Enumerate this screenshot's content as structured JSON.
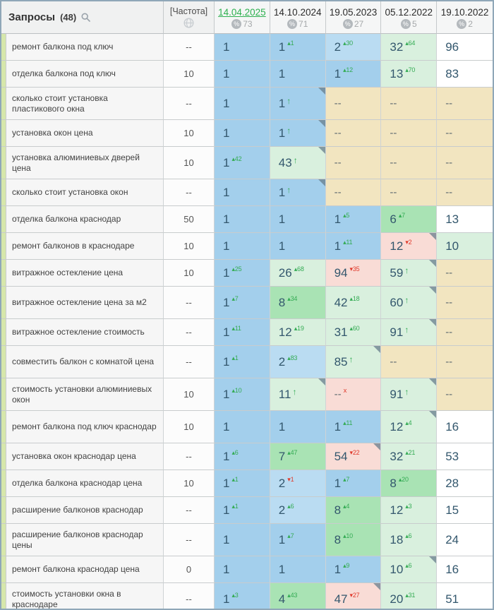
{
  "header": {
    "title": "Запросы",
    "count": "(48)",
    "frequency_label": "[Частота]",
    "percent_symbol": "%",
    "dates": [
      {
        "label": "14.04.2025",
        "metric": "73",
        "active": true
      },
      {
        "label": "14.10.2024",
        "metric": "71",
        "active": false
      },
      {
        "label": "19.05.2023",
        "metric": "27",
        "active": false
      },
      {
        "label": "05.12.2022",
        "metric": "5",
        "active": false
      },
      {
        "label": "19.10.2022",
        "metric": "2",
        "active": false
      }
    ]
  },
  "colors": {
    "active_date": "#2db04f",
    "up": "#33ab53",
    "down": "#e03a2c",
    "cell_blue": "#a3cfec",
    "cell_blue_light": "#badcf2",
    "cell_green": "#a9e3b4",
    "cell_green_light": "#d9f0de",
    "cell_pink": "#f9dcd6",
    "cell_tan": "#f2e5c0"
  },
  "rows": [
    {
      "query": "ремонт балкона под ключ",
      "frequency": "--",
      "tall": false,
      "cells": [
        {
          "value": "1",
          "bg": "blue"
        },
        {
          "value": "1",
          "bg": "blue",
          "delta": "1",
          "dir": "up"
        },
        {
          "value": "2",
          "bg": "blue_light",
          "delta": "30",
          "dir": "up"
        },
        {
          "value": "32",
          "bg": "green_light",
          "delta": "64",
          "dir": "up"
        },
        {
          "value": "96",
          "bg": "white"
        }
      ]
    },
    {
      "query": "отделка балкона под ключ",
      "frequency": "10",
      "tall": false,
      "cells": [
        {
          "value": "1",
          "bg": "blue"
        },
        {
          "value": "1",
          "bg": "blue"
        },
        {
          "value": "1",
          "bg": "blue",
          "delta": "12",
          "dir": "up"
        },
        {
          "value": "13",
          "bg": "green_light",
          "delta": "70",
          "dir": "up"
        },
        {
          "value": "83",
          "bg": "white"
        }
      ]
    },
    {
      "query": "сколько стоит установка пластикового окна",
      "frequency": "--",
      "tall": true,
      "cells": [
        {
          "value": "1",
          "bg": "blue"
        },
        {
          "value": "1",
          "bg": "blue",
          "arrow": true,
          "corner": true
        },
        {
          "value": "--",
          "bg": "tan"
        },
        {
          "value": "--",
          "bg": "tan"
        },
        {
          "value": "--",
          "bg": "tan"
        }
      ]
    },
    {
      "query": "установка окон цена",
      "frequency": "10",
      "tall": false,
      "cells": [
        {
          "value": "1",
          "bg": "blue"
        },
        {
          "value": "1",
          "bg": "blue",
          "arrow": true,
          "corner": true
        },
        {
          "value": "--",
          "bg": "tan"
        },
        {
          "value": "--",
          "bg": "tan"
        },
        {
          "value": "--",
          "bg": "tan"
        }
      ]
    },
    {
      "query": "установка алюминиевых дверей цена",
      "frequency": "10",
      "tall": true,
      "cells": [
        {
          "value": "1",
          "bg": "blue",
          "delta": "42",
          "dir": "up"
        },
        {
          "value": "43",
          "bg": "green_light",
          "arrow": true,
          "corner": true
        },
        {
          "value": "--",
          "bg": "tan"
        },
        {
          "value": "--",
          "bg": "tan"
        },
        {
          "value": "--",
          "bg": "tan"
        }
      ]
    },
    {
      "query": "сколько стоит установка окон",
      "frequency": "--",
      "tall": false,
      "cells": [
        {
          "value": "1",
          "bg": "blue"
        },
        {
          "value": "1",
          "bg": "blue",
          "arrow": true,
          "corner": true
        },
        {
          "value": "--",
          "bg": "tan"
        },
        {
          "value": "--",
          "bg": "tan"
        },
        {
          "value": "--",
          "bg": "tan"
        }
      ]
    },
    {
      "query": "отделка балкона краснодар",
      "frequency": "50",
      "tall": false,
      "cells": [
        {
          "value": "1",
          "bg": "blue"
        },
        {
          "value": "1",
          "bg": "blue"
        },
        {
          "value": "1",
          "bg": "blue",
          "delta": "5",
          "dir": "up"
        },
        {
          "value": "6",
          "bg": "green",
          "delta": "7",
          "dir": "up"
        },
        {
          "value": "13",
          "bg": "white"
        }
      ]
    },
    {
      "query": "ремонт балконов в краснодаре",
      "frequency": "10",
      "tall": false,
      "cells": [
        {
          "value": "1",
          "bg": "blue"
        },
        {
          "value": "1",
          "bg": "blue"
        },
        {
          "value": "1",
          "bg": "blue",
          "delta": "11",
          "dir": "up"
        },
        {
          "value": "12",
          "bg": "pink",
          "delta": "2",
          "dir": "down",
          "corner": true
        },
        {
          "value": "10",
          "bg": "green_light"
        }
      ]
    },
    {
      "query": "витражное остекление цена",
      "frequency": "10",
      "tall": false,
      "cells": [
        {
          "value": "1",
          "bg": "blue",
          "delta": "25",
          "dir": "up"
        },
        {
          "value": "26",
          "bg": "green_light",
          "delta": "68",
          "dir": "up"
        },
        {
          "value": "94",
          "bg": "pink",
          "delta": "35",
          "dir": "down"
        },
        {
          "value": "59",
          "bg": "green_light",
          "arrow": true,
          "corner": true
        },
        {
          "value": "--",
          "bg": "tan"
        }
      ]
    },
    {
      "query": "витражное остекление цена за м2",
      "frequency": "--",
      "tall": true,
      "cells": [
        {
          "value": "1",
          "bg": "blue",
          "delta": "7",
          "dir": "up"
        },
        {
          "value": "8",
          "bg": "green",
          "delta": "34",
          "dir": "up"
        },
        {
          "value": "42",
          "bg": "green_light",
          "delta": "18",
          "dir": "up"
        },
        {
          "value": "60",
          "bg": "green_light",
          "arrow": true,
          "corner": true
        },
        {
          "value": "--",
          "bg": "tan"
        }
      ]
    },
    {
      "query": "витражное остекление стоимость",
      "frequency": "--",
      "tall": false,
      "cells": [
        {
          "value": "1",
          "bg": "blue",
          "delta": "11",
          "dir": "up"
        },
        {
          "value": "12",
          "bg": "green_light",
          "delta": "19",
          "dir": "up"
        },
        {
          "value": "31",
          "bg": "green_light",
          "delta": "60",
          "dir": "up"
        },
        {
          "value": "91",
          "bg": "green_light",
          "arrow": true,
          "corner": true
        },
        {
          "value": "--",
          "bg": "tan"
        }
      ]
    },
    {
      "query": "совместить балкон с комнатой цена",
      "frequency": "--",
      "tall": true,
      "cells": [
        {
          "value": "1",
          "bg": "blue",
          "delta": "1",
          "dir": "up"
        },
        {
          "value": "2",
          "bg": "blue_light",
          "delta": "83",
          "dir": "up"
        },
        {
          "value": "85",
          "bg": "green_light",
          "arrow": true,
          "corner": true
        },
        {
          "value": "--",
          "bg": "tan"
        },
        {
          "value": "--",
          "bg": "tan"
        }
      ]
    },
    {
      "query": "стоимость установки алюминиевых окон",
      "frequency": "10",
      "tall": true,
      "cells": [
        {
          "value": "1",
          "bg": "blue",
          "delta": "10",
          "dir": "up"
        },
        {
          "value": "11",
          "bg": "green_light",
          "arrow": true,
          "corner": true
        },
        {
          "value": "--",
          "bg": "pink",
          "x": true
        },
        {
          "value": "91",
          "bg": "green_light",
          "arrow": true,
          "corner": true
        },
        {
          "value": "--",
          "bg": "tan"
        }
      ]
    },
    {
      "query": "ремонт балкона под ключ краснодар",
      "frequency": "10",
      "tall": true,
      "cells": [
        {
          "value": "1",
          "bg": "blue"
        },
        {
          "value": "1",
          "bg": "blue"
        },
        {
          "value": "1",
          "bg": "blue",
          "delta": "11",
          "dir": "up"
        },
        {
          "value": "12",
          "bg": "green_light",
          "delta": "4",
          "dir": "up",
          "corner": true
        },
        {
          "value": "16",
          "bg": "white"
        }
      ]
    },
    {
      "query": "установка окон краснодар цена",
      "frequency": "--",
      "tall": false,
      "cells": [
        {
          "value": "1",
          "bg": "blue",
          "delta": "6",
          "dir": "up"
        },
        {
          "value": "7",
          "bg": "green",
          "delta": "47",
          "dir": "up"
        },
        {
          "value": "54",
          "bg": "pink",
          "delta": "22",
          "dir": "down",
          "corner": true
        },
        {
          "value": "32",
          "bg": "green_light",
          "delta": "21",
          "dir": "up"
        },
        {
          "value": "53",
          "bg": "white"
        }
      ]
    },
    {
      "query": "отделка балкона краснодар цена",
      "frequency": "10",
      "tall": false,
      "cells": [
        {
          "value": "1",
          "bg": "blue",
          "delta": "1",
          "dir": "up"
        },
        {
          "value": "2",
          "bg": "blue_light",
          "delta": "1",
          "dir": "down"
        },
        {
          "value": "1",
          "bg": "blue",
          "delta": "7",
          "dir": "up"
        },
        {
          "value": "8",
          "bg": "green",
          "delta": "20",
          "dir": "up"
        },
        {
          "value": "28",
          "bg": "white"
        }
      ]
    },
    {
      "query": "расширение балконов краснодар",
      "frequency": "--",
      "tall": false,
      "cells": [
        {
          "value": "1",
          "bg": "blue",
          "delta": "1",
          "dir": "up"
        },
        {
          "value": "2",
          "bg": "blue_light",
          "delta": "6",
          "dir": "up"
        },
        {
          "value": "8",
          "bg": "green",
          "delta": "4",
          "dir": "up"
        },
        {
          "value": "12",
          "bg": "green_light",
          "delta": "3",
          "dir": "up"
        },
        {
          "value": "15",
          "bg": "white"
        }
      ]
    },
    {
      "query": "расширение балконов краснодар цены",
      "frequency": "--",
      "tall": true,
      "cells": [
        {
          "value": "1",
          "bg": "blue"
        },
        {
          "value": "1",
          "bg": "blue",
          "delta": "7",
          "dir": "up"
        },
        {
          "value": "8",
          "bg": "green",
          "delta": "10",
          "dir": "up"
        },
        {
          "value": "18",
          "bg": "green_light",
          "delta": "6",
          "dir": "up"
        },
        {
          "value": "24",
          "bg": "white"
        }
      ]
    },
    {
      "query": "ремонт балкона краснодар цена",
      "frequency": "0",
      "tall": false,
      "cells": [
        {
          "value": "1",
          "bg": "blue"
        },
        {
          "value": "1",
          "bg": "blue"
        },
        {
          "value": "1",
          "bg": "blue",
          "delta": "9",
          "dir": "up"
        },
        {
          "value": "10",
          "bg": "green_light",
          "delta": "6",
          "dir": "up",
          "corner": true
        },
        {
          "value": "16",
          "bg": "white"
        }
      ]
    },
    {
      "query": "стоимость установки окна в краснодаре",
      "frequency": "--",
      "tall": true,
      "cells": [
        {
          "value": "1",
          "bg": "blue",
          "delta": "3",
          "dir": "up"
        },
        {
          "value": "4",
          "bg": "green",
          "delta": "43",
          "dir": "up"
        },
        {
          "value": "47",
          "bg": "pink",
          "delta": "27",
          "dir": "down",
          "corner": true
        },
        {
          "value": "20",
          "bg": "green_light",
          "delta": "31",
          "dir": "up"
        },
        {
          "value": "51",
          "bg": "white"
        }
      ]
    }
  ]
}
